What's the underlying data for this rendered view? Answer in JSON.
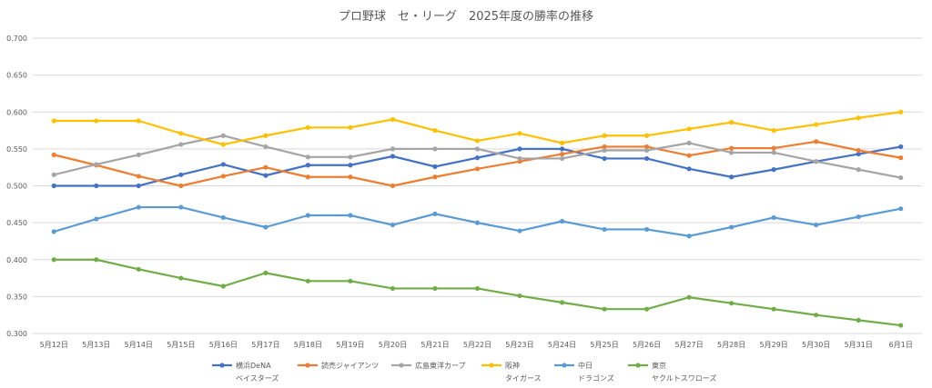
{
  "chart_data": {
    "type": "line",
    "title": "プロ野球　セ・リーグ　2025年度の勝率の推移",
    "xlabel": "",
    "ylabel": "",
    "ylim": [
      0.3,
      0.7
    ],
    "yticks": [
      "0.300",
      "0.350",
      "0.400",
      "0.450",
      "0.500",
      "0.550",
      "0.600",
      "0.650",
      "0.700"
    ],
    "grid": true,
    "legend_position": "bottom",
    "categories": [
      "5月12日",
      "5月13日",
      "5月14日",
      "5月15日",
      "5月16日",
      "5月17日",
      "5月18日",
      "5月19日",
      "5月20日",
      "5月21日",
      "5月22日",
      "5月23日",
      "5月24日",
      "5月25日",
      "5月26日",
      "5月27日",
      "5月28日",
      "5月29日",
      "5月30日",
      "5月31日",
      "6月1日"
    ],
    "series": [
      {
        "name": "横浜DeNA",
        "sub": "ベイスターズ",
        "color": "#4472c4",
        "values": [
          0.5,
          0.5,
          0.5,
          0.515,
          0.529,
          0.514,
          0.528,
          0.528,
          0.54,
          0.526,
          0.538,
          0.55,
          0.55,
          0.537,
          0.537,
          0.523,
          0.512,
          0.522,
          0.533,
          0.543,
          0.553
        ]
      },
      {
        "name": "読売ジャイアンツ",
        "sub": "",
        "color": "#ed7d31",
        "values": [
          0.542,
          0.528,
          0.513,
          0.5,
          0.513,
          0.525,
          0.512,
          0.512,
          0.5,
          0.512,
          0.523,
          0.533,
          0.543,
          0.553,
          0.553,
          0.541,
          0.551,
          0.551,
          0.56,
          0.548,
          0.538
        ]
      },
      {
        "name": "広島東洋カープ",
        "sub": "",
        "color": "#a5a5a5",
        "values": [
          0.515,
          0.529,
          0.542,
          0.556,
          0.568,
          0.553,
          0.539,
          0.539,
          0.55,
          0.55,
          0.55,
          0.537,
          0.537,
          0.548,
          0.548,
          0.558,
          0.545,
          0.545,
          0.533,
          0.522,
          0.511
        ]
      },
      {
        "name": "阪神",
        "sub": "タイガース",
        "color": "#ffc000",
        "values": [
          0.588,
          0.588,
          0.588,
          0.571,
          0.556,
          0.568,
          0.579,
          0.579,
          0.59,
          0.575,
          0.561,
          0.571,
          0.558,
          0.568,
          0.568,
          0.577,
          0.586,
          0.575,
          0.583,
          0.592,
          0.6
        ]
      },
      {
        "name": "中日",
        "sub": "ドラゴンズ",
        "color": "#5b9bd5",
        "values": [
          0.438,
          0.455,
          0.471,
          0.471,
          0.457,
          0.444,
          0.46,
          0.46,
          0.447,
          0.462,
          0.45,
          0.439,
          0.452,
          0.441,
          0.441,
          0.432,
          0.444,
          0.457,
          0.447,
          0.458,
          0.469
        ]
      },
      {
        "name": "東京",
        "sub": "ヤクルトスワローズ",
        "color": "#70ad47",
        "values": [
          0.4,
          0.4,
          0.387,
          0.375,
          0.364,
          0.382,
          0.371,
          0.371,
          0.361,
          0.361,
          0.361,
          0.351,
          0.342,
          0.333,
          0.333,
          0.349,
          0.341,
          0.333,
          0.325,
          0.318,
          0.311
        ]
      }
    ]
  }
}
